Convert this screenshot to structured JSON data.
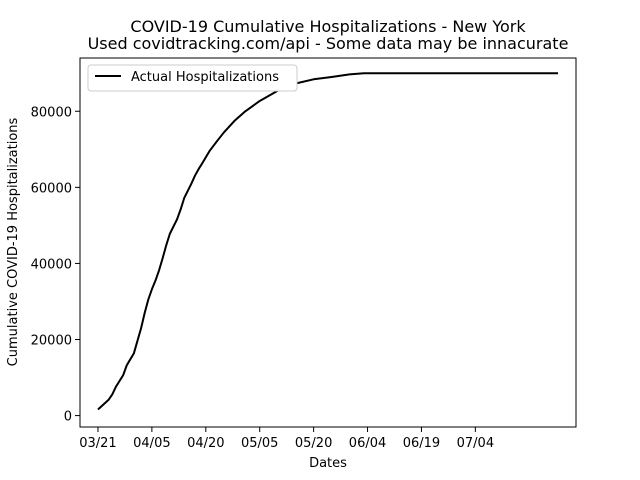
{
  "chart_data": {
    "type": "line",
    "title": "COVID-19 Cumulative Hospitalizations - New York",
    "subtitle": "Used covidtracking.com/api - Some data may be innacurate",
    "xlabel": "Dates",
    "ylabel": "Cumulative COVID-19 Hospitalizations",
    "x_tick_labels": [
      "03/21",
      "04/05",
      "04/20",
      "05/05",
      "05/20",
      "06/04",
      "06/19",
      "07/04"
    ],
    "x_tick_dates": [
      "2020-03-21",
      "2020-04-05",
      "2020-04-20",
      "2020-05-05",
      "2020-05-20",
      "2020-06-04",
      "2020-06-19",
      "2020-07-04"
    ],
    "y_ticks": [
      0,
      20000,
      40000,
      60000,
      80000
    ],
    "xlim": [
      "2020-03-16",
      "2020-08-01"
    ],
    "ylim": [
      -3000,
      94000
    ],
    "grid": false,
    "legend_position": "upper-left",
    "series": [
      {
        "name": "Actual Hospitalizations",
        "color": "#000000",
        "x": [
          "2020-03-21",
          "2020-03-24",
          "2020-03-25",
          "2020-03-26",
          "2020-03-28",
          "2020-03-29",
          "2020-03-31",
          "2020-04-02",
          "2020-04-03",
          "2020-04-04",
          "2020-04-05",
          "2020-04-06",
          "2020-04-07",
          "2020-04-08",
          "2020-04-09",
          "2020-04-10",
          "2020-04-12",
          "2020-04-13",
          "2020-04-14",
          "2020-04-16",
          "2020-04-17",
          "2020-04-18",
          "2020-04-19",
          "2020-04-21",
          "2020-04-23",
          "2020-04-25",
          "2020-04-28",
          "2020-05-01",
          "2020-05-05",
          "2020-05-10",
          "2020-05-15",
          "2020-05-20",
          "2020-05-25",
          "2020-05-30",
          "2020-06-03",
          "2020-06-10",
          "2020-06-19",
          "2020-07-04",
          "2020-07-15",
          "2020-07-27"
        ],
        "y": [
          1600,
          4200,
          5600,
          7600,
          10600,
          13200,
          16400,
          23000,
          27000,
          30500,
          33200,
          35500,
          38200,
          41400,
          44800,
          47800,
          51600,
          54200,
          57200,
          61000,
          63100,
          64800,
          66300,
          69500,
          72000,
          74400,
          77500,
          80000,
          82700,
          85400,
          87300,
          88400,
          89000,
          89700,
          90000,
          90000,
          90000,
          90000,
          90000,
          90000
        ]
      }
    ]
  }
}
